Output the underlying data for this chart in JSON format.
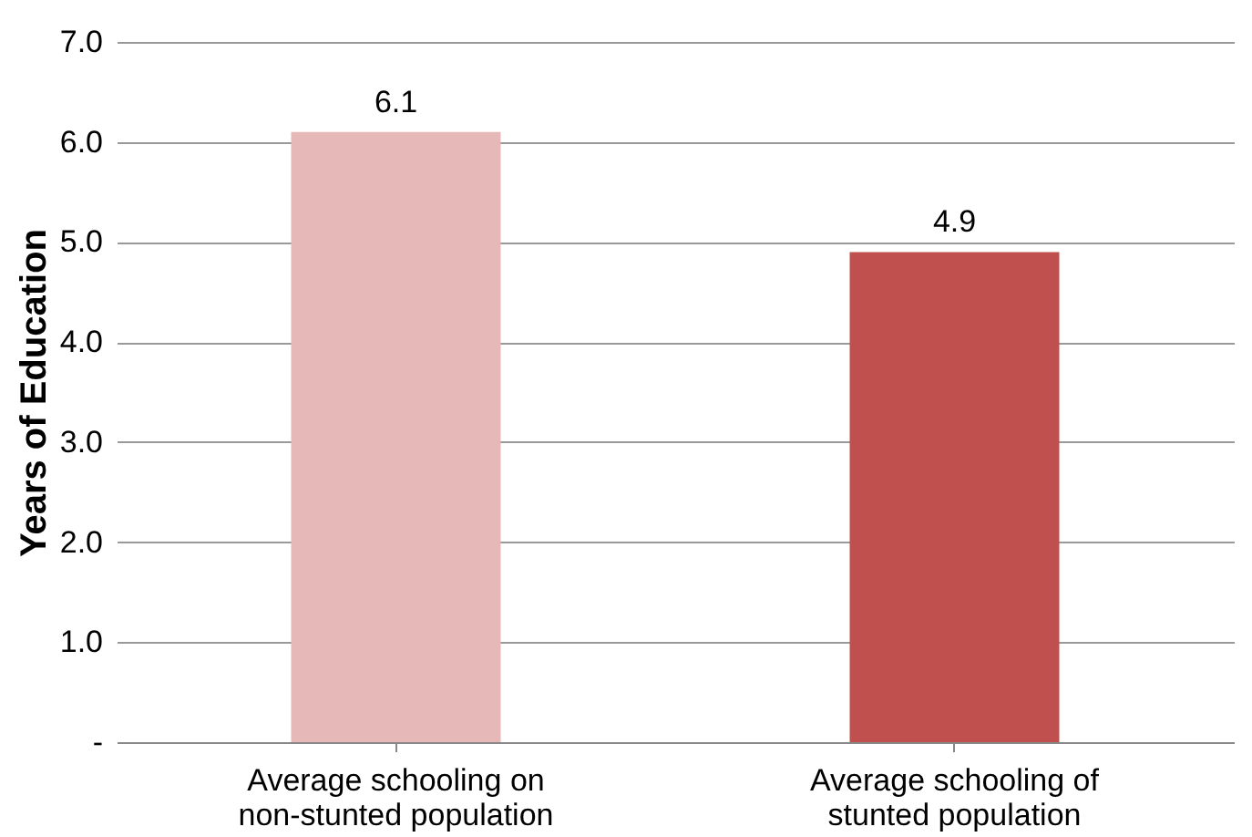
{
  "chart_data": {
    "type": "bar",
    "ylabel": "Years of Education",
    "categories": [
      "Average schooling on non-stunted population",
      "Average schooling of stunted population"
    ],
    "values": [
      6.1,
      4.9
    ],
    "colors": [
      "#e6b8b7",
      "#c0504d"
    ],
    "ylim": [
      0,
      7
    ],
    "yticks": [
      {
        "value": 0,
        "label": "-"
      },
      {
        "value": 1,
        "label": "1.0"
      },
      {
        "value": 2,
        "label": "2.0"
      },
      {
        "value": 3,
        "label": "3.0"
      },
      {
        "value": 4,
        "label": "4.0"
      },
      {
        "value": 5,
        "label": "5.0"
      },
      {
        "value": 6,
        "label": "6.0"
      },
      {
        "value": 7,
        "label": "7.0"
      }
    ],
    "grid": "y",
    "data_labels": true
  }
}
